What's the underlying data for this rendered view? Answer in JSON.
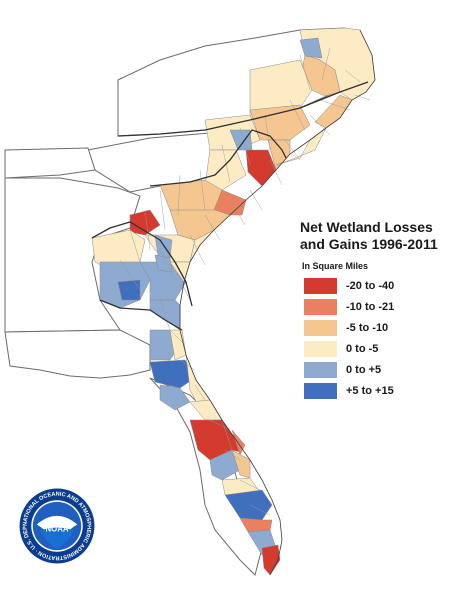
{
  "legend": {
    "title_line1": "Net Wetland Losses",
    "title_line2": "and Gains 1996-2011",
    "units": "In Square Miles",
    "classes": [
      {
        "label": "-20 to -40",
        "color": "#d53a2e"
      },
      {
        "label": "-10 to -21",
        "color": "#ea8060"
      },
      {
        "label": "-5 to -10",
        "color": "#f6c691"
      },
      {
        "label": "0 to -5",
        "color": "#fdebc4"
      },
      {
        "label": "0 to +5",
        "color": "#8eaad0"
      },
      {
        "label": "+5 to +15",
        "color": "#3f6fbd"
      }
    ]
  },
  "logo": {
    "text": "NOAA",
    "ring_text": "NATIONAL OCEANIC AND ATMOSPHERIC ADMINISTRATION · U.S. DEPARTMENT OF COMMERCE ·",
    "colors": {
      "ring": "#0a3d8f",
      "sky": "#1e5fbf",
      "sea": "#1a6fd3",
      "text": "#ffffff"
    }
  },
  "map": {
    "icon": "map-region"
  }
}
